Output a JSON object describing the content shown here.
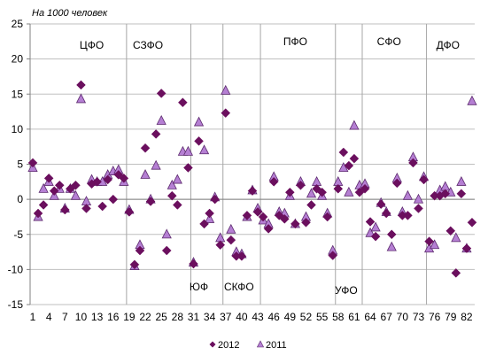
{
  "chart_data": {
    "type": "scatter",
    "ylabel": "На 1000 человек",
    "ylim": [
      -15,
      25
    ],
    "yticks": [
      25,
      20,
      15,
      10,
      5,
      0,
      -5,
      -10,
      -15
    ],
    "xlim": [
      1,
      83
    ],
    "xticks": [
      1,
      4,
      7,
      10,
      13,
      16,
      19,
      22,
      25,
      28,
      31,
      34,
      37,
      40,
      43,
      46,
      49,
      52,
      55,
      58,
      61,
      64,
      67,
      70,
      73,
      76,
      79,
      82
    ],
    "grid": "horizontal",
    "district_dividers": [
      19,
      31,
      37,
      44,
      58,
      63,
      75
    ],
    "district_labels": [
      {
        "name": "ЦФО",
        "x": 12,
        "y": 22
      },
      {
        "name": "СЗФО",
        "x": 22.5,
        "y": 22
      },
      {
        "name": "ПФО",
        "x": 50,
        "y": 22.5
      },
      {
        "name": "СФО",
        "x": 67.5,
        "y": 22.5
      },
      {
        "name": "ДФО",
        "x": 78.5,
        "y": 22
      },
      {
        "name": "ЮФ",
        "x": 32,
        "y": -12.5
      },
      {
        "name": "СКФО",
        "x": 39.5,
        "y": -12.5
      },
      {
        "name": "УФО",
        "x": 59.5,
        "y": -13
      }
    ],
    "legend_position": "bottom",
    "series": [
      {
        "name": "2012",
        "marker": "diamond",
        "color": "#6b0f5e",
        "points": [
          [
            1,
            5.2
          ],
          [
            2,
            -2
          ],
          [
            3,
            -0.8
          ],
          [
            4,
            3
          ],
          [
            5,
            1.2
          ],
          [
            6,
            2
          ],
          [
            7,
            -1.5
          ],
          [
            8,
            1.5
          ],
          [
            9,
            2
          ],
          [
            10,
            16.3
          ],
          [
            11,
            -1.3
          ],
          [
            12,
            2.2
          ],
          [
            13,
            2.5
          ],
          [
            14,
            -1
          ],
          [
            15,
            2.8
          ],
          [
            16,
            0
          ],
          [
            17,
            3.5
          ],
          [
            18,
            3
          ],
          [
            19,
            -1.8
          ],
          [
            20,
            -9.3
          ],
          [
            21,
            -7.3
          ],
          [
            22,
            7.3
          ],
          [
            23,
            -0.3
          ],
          [
            24,
            9.3
          ],
          [
            25,
            15.1
          ],
          [
            26,
            -7.3
          ],
          [
            27,
            0.5
          ],
          [
            28,
            -0.8
          ],
          [
            29,
            13.8
          ],
          [
            30,
            4.5
          ],
          [
            31,
            -9.2
          ],
          [
            32,
            8.3
          ],
          [
            33,
            -3.5
          ],
          [
            34,
            -2
          ],
          [
            35,
            0
          ],
          [
            36,
            -6.5
          ],
          [
            37,
            12.3
          ],
          [
            38,
            -5.8
          ],
          [
            39,
            -8.1
          ],
          [
            40,
            -8.1
          ],
          [
            41,
            -2.3
          ],
          [
            42,
            1.2
          ],
          [
            43,
            -1.8
          ],
          [
            44,
            -2.5
          ],
          [
            45,
            -4.2
          ],
          [
            46,
            2.5
          ],
          [
            47,
            -2.3
          ],
          [
            48,
            -2.8
          ],
          [
            49,
            1
          ],
          [
            50,
            -3.5
          ],
          [
            51,
            2
          ],
          [
            52,
            -3.3
          ],
          [
            53,
            -0.8
          ],
          [
            54,
            1.5
          ],
          [
            55,
            1
          ],
          [
            56,
            -2.5
          ],
          [
            57,
            -8
          ],
          [
            58,
            1.5
          ],
          [
            59,
            6.7
          ],
          [
            60,
            4.8
          ],
          [
            61,
            5.8
          ],
          [
            62,
            1
          ],
          [
            63,
            1.5
          ],
          [
            64,
            -3.2
          ],
          [
            65,
            -5.3
          ],
          [
            66,
            -0.7
          ],
          [
            67,
            -2
          ],
          [
            68,
            -5
          ],
          [
            69,
            2.3
          ],
          [
            70,
            -2.3
          ],
          [
            71,
            -2.3
          ],
          [
            72,
            5.2
          ],
          [
            73,
            -1.3
          ],
          [
            74,
            2.8
          ],
          [
            75,
            -6
          ],
          [
            76,
            0.5
          ],
          [
            77,
            0.5
          ],
          [
            78,
            0.8
          ],
          [
            79,
            -4.5
          ],
          [
            80,
            -10.5
          ],
          [
            81,
            0.8
          ],
          [
            82,
            -7
          ],
          [
            83,
            -3.3
          ]
        ]
      },
      {
        "name": "2011",
        "marker": "triangle",
        "color": "#b57fd3",
        "points": [
          [
            1,
            4.5
          ],
          [
            2,
            -2.5
          ],
          [
            3,
            1.5
          ],
          [
            4,
            2.5
          ],
          [
            5,
            0.5
          ],
          [
            6,
            1.5
          ],
          [
            7,
            -1.3
          ],
          [
            8,
            1.5
          ],
          [
            9,
            0.5
          ],
          [
            10,
            14.3
          ],
          [
            11,
            -0.3
          ],
          [
            12,
            2.8
          ],
          [
            13,
            2.5
          ],
          [
            14,
            2.5
          ],
          [
            15,
            3.5
          ],
          [
            16,
            4
          ],
          [
            17,
            4.2
          ],
          [
            18,
            2.5
          ],
          [
            19,
            -1.5
          ],
          [
            20,
            -9.5
          ],
          [
            21,
            -6.5
          ],
          [
            22,
            3.5
          ],
          [
            23,
            0
          ],
          [
            24,
            4.8
          ],
          [
            25,
            11.2
          ],
          [
            26,
            -5
          ],
          [
            27,
            2
          ],
          [
            28,
            2.8
          ],
          [
            29,
            6.8
          ],
          [
            30,
            6.8
          ],
          [
            31,
            -9
          ],
          [
            32,
            11
          ],
          [
            33,
            7
          ],
          [
            34,
            -2.8
          ],
          [
            35,
            0.3
          ],
          [
            36,
            -5.5
          ],
          [
            37,
            15.5
          ],
          [
            38,
            -4.3
          ],
          [
            39,
            -7.5
          ],
          [
            40,
            -7.8
          ],
          [
            41,
            -2.5
          ],
          [
            42,
            1.3
          ],
          [
            43,
            -1.3
          ],
          [
            44,
            -3
          ],
          [
            45,
            -3.5
          ],
          [
            46,
            3.2
          ],
          [
            47,
            -1.8
          ],
          [
            48,
            -2
          ],
          [
            49,
            0.5
          ],
          [
            50,
            -3.5
          ],
          [
            51,
            2.5
          ],
          [
            52,
            -2.5
          ],
          [
            53,
            0.8
          ],
          [
            54,
            2.5
          ],
          [
            55,
            0.5
          ],
          [
            56,
            -2
          ],
          [
            57,
            -7.3
          ],
          [
            58,
            2.5
          ],
          [
            59,
            4.5
          ],
          [
            60,
            1
          ],
          [
            61,
            10.5
          ],
          [
            62,
            2
          ],
          [
            63,
            2.2
          ],
          [
            64,
            -4.8
          ],
          [
            65,
            -4
          ],
          [
            66,
            -0.5
          ],
          [
            67,
            -1.8
          ],
          [
            68,
            -6.8
          ],
          [
            69,
            3
          ],
          [
            70,
            -1.8
          ],
          [
            71,
            0.5
          ],
          [
            72,
            6
          ],
          [
            73,
            0
          ],
          [
            74,
            3.2
          ],
          [
            75,
            -7
          ],
          [
            76,
            -6.5
          ],
          [
            77,
            1.3
          ],
          [
            78,
            1.8
          ],
          [
            79,
            1
          ],
          [
            80,
            -5.5
          ],
          [
            81,
            2.5
          ],
          [
            82,
            -7
          ],
          [
            83,
            14
          ]
        ]
      }
    ]
  }
}
